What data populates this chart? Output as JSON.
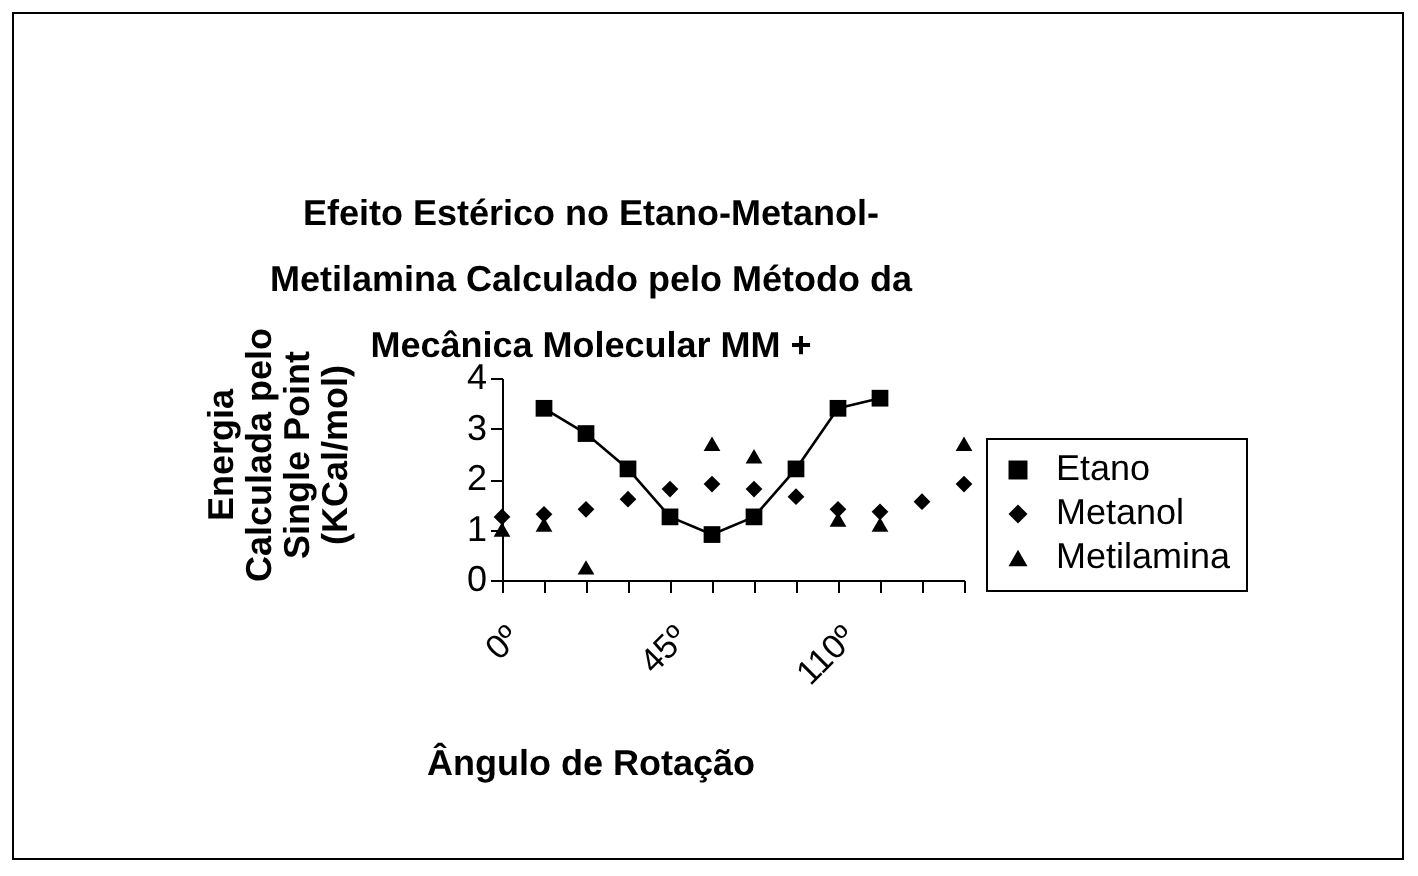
{
  "chart_data": {
    "type": "line",
    "title": "Efeito Estérico no Etano-Metanol-Metilamina Calculado pelo Método da Mecânica Molecular MM +",
    "xlabel": "Ângulo de Rotação",
    "ylabel": "Energia Calculada pelo Single Point (KCal/mol)",
    "categories": [
      "0º",
      null,
      null,
      null,
      "45º",
      null,
      null,
      null,
      "110º",
      null,
      null,
      null
    ],
    "series": [
      {
        "name": "Etano",
        "type": "line",
        "marker": "square",
        "line_style": "solid",
        "color": "#000000",
        "values": [
          null,
          3.4,
          2.9,
          2.2,
          1.25,
          0.9,
          1.25,
          2.2,
          3.4,
          3.6,
          null,
          null
        ]
      },
      {
        "name": "Metanol",
        "type": "scatter",
        "marker": "diamond",
        "color": "#000000",
        "values": [
          1.25,
          1.3,
          1.4,
          1.6,
          1.8,
          1.9,
          1.8,
          1.65,
          1.4,
          1.35,
          1.55,
          1.9
        ]
      },
      {
        "name": "Metilamina",
        "type": "scatter",
        "marker": "triangle",
        "color": "#000000",
        "values": [
          1.0,
          1.1,
          0.25,
          null,
          null,
          2.7,
          2.45,
          null,
          1.2,
          1.1,
          null,
          2.7
        ]
      }
    ],
    "ylim": [
      0,
      4
    ],
    "yticks": [
      0,
      1,
      2,
      3,
      4
    ],
    "grid": false,
    "legend": "right"
  }
}
